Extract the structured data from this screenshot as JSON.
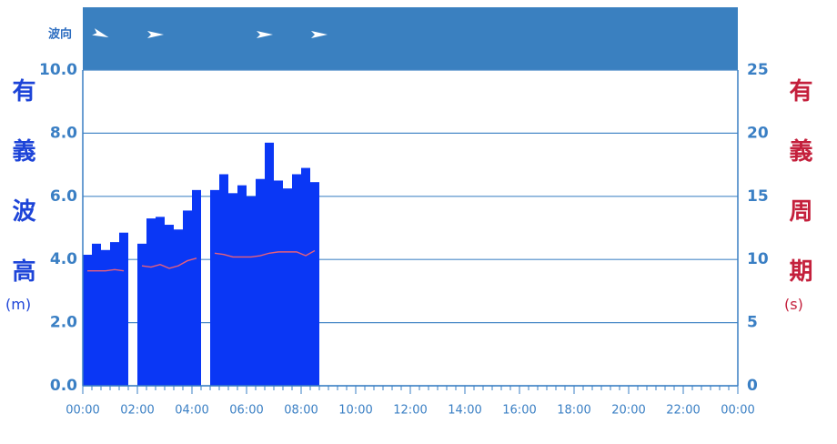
{
  "chart_data": {
    "type": "bar",
    "y_label": "有義波高",
    "y_unit": "(m)",
    "y2_label": "有義周期",
    "y2_unit": "(s)",
    "x": [
      0,
      20,
      40,
      60,
      80,
      100,
      120,
      140,
      160,
      180,
      200,
      220,
      240,
      260,
      280,
      300,
      320,
      340,
      360,
      380,
      400,
      420,
      440,
      460,
      480,
      500
    ],
    "series": [
      {
        "type": "bar",
        "color": "#0a37f5",
        "values": [
          4.15,
          4.5,
          4.3,
          4.55,
          4.85,
          null,
          4.5,
          5.3,
          5.35,
          5.1,
          4.95,
          5.55,
          6.2,
          null,
          6.2,
          6.7,
          6.1,
          6.35,
          6.0,
          6.55,
          7.7,
          6.5,
          6.25,
          6.7,
          6.9,
          6.45
        ]
      },
      {
        "type": "line",
        "axis": "y2",
        "color": "#e8607a",
        "values": [
          9.1,
          9.1,
          9.1,
          9.2,
          9.1,
          null,
          9.5,
          9.4,
          9.6,
          9.3,
          9.5,
          9.9,
          10.1,
          null,
          10.5,
          10.4,
          10.2,
          10.2,
          10.2,
          10.3,
          10.5,
          10.6,
          10.6,
          10.6,
          10.3,
          10.7
        ]
      }
    ],
    "xlim": [
      0,
      1440
    ],
    "xticks": [
      {
        "value": 0,
        "label": "00:00"
      },
      {
        "value": 120,
        "label": "02:00"
      },
      {
        "value": 240,
        "label": "04:00"
      },
      {
        "value": 360,
        "label": "06:00"
      },
      {
        "value": 480,
        "label": "08:00"
      },
      {
        "value": 600,
        "label": "10:00"
      },
      {
        "value": 720,
        "label": "12:00"
      },
      {
        "value": 840,
        "label": "14:00"
      },
      {
        "value": 960,
        "label": "16:00"
      },
      {
        "value": 1080,
        "label": "18:00"
      },
      {
        "value": 1200,
        "label": "20:00"
      },
      {
        "value": 1320,
        "label": "22:00"
      },
      {
        "value": 1440,
        "label": "00:00"
      }
    ],
    "xminorticks": [
      20,
      40,
      60,
      80,
      100,
      140,
      160,
      180,
      200,
      220,
      260,
      280,
      300,
      320,
      340,
      380,
      400,
      420,
      440,
      460,
      500,
      520,
      540,
      560,
      580,
      620,
      640,
      660,
      680,
      700,
      740,
      760,
      780,
      800,
      820,
      860,
      880,
      900,
      920,
      940,
      980,
      1000,
      1020,
      1040,
      1060,
      1100,
      1120,
      1140,
      1160,
      1180,
      1220,
      1240,
      1260,
      1280,
      1300,
      1340,
      1360,
      1380,
      1400,
      1420
    ],
    "ylim": [
      0,
      10
    ],
    "yticks": [
      {
        "value": 0,
        "label": "0.0"
      },
      {
        "value": 2,
        "label": "2.0"
      },
      {
        "value": 4,
        "label": "4.0"
      },
      {
        "value": 6,
        "label": "6.0"
      },
      {
        "value": 8,
        "label": "8.0"
      },
      {
        "value": 10,
        "label": "10.0"
      }
    ],
    "y2lim": [
      0,
      25
    ],
    "y2ticks": [
      0,
      5,
      10,
      15,
      20,
      25
    ],
    "grid": true,
    "wave_direction": {
      "label": "波向",
      "x": [
        40,
        160,
        400,
        520
      ],
      "angles": [
        20,
        0,
        0,
        0
      ]
    }
  }
}
